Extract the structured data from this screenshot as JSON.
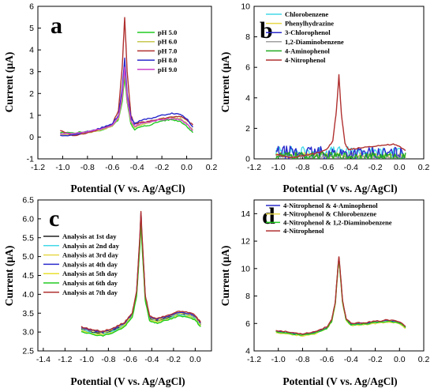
{
  "chart_data": [
    {
      "panel": "a",
      "type": "line",
      "xlabel": "Potential (V vs. Ag/AgCl)",
      "ylabel": "Current (μA)",
      "xlim": [
        -1.2,
        0.2
      ],
      "ylim": [
        -1,
        6
      ],
      "xticks": [
        "-1.2",
        "-1.0",
        "-0.8",
        "-0.6",
        "-0.4",
        "-0.2",
        "0.0",
        "0.2"
      ],
      "yticks": [
        "-1",
        "0",
        "1",
        "2",
        "3",
        "4",
        "5",
        "6"
      ],
      "legend_position": "top-right",
      "series": [
        {
          "name": "pH 5.0",
          "color": "#22cc22",
          "x": [
            -1.02,
            -0.9,
            -0.8,
            -0.7,
            -0.6,
            -0.55,
            -0.52,
            -0.5,
            -0.48,
            -0.45,
            -0.42,
            -0.38,
            -0.3,
            -0.2,
            -0.12,
            -0.05,
            0.0,
            0.05
          ],
          "y": [
            0.2,
            0.2,
            0.25,
            0.3,
            0.5,
            0.8,
            1.6,
            2.8,
            1.6,
            0.6,
            0.35,
            0.45,
            0.55,
            0.75,
            0.8,
            0.72,
            0.5,
            0.2
          ]
        },
        {
          "name": "pH 6.0",
          "color": "#c8c850",
          "x": [
            -1.02,
            -0.9,
            -0.8,
            -0.7,
            -0.6,
            -0.55,
            -0.52,
            -0.5,
            -0.48,
            -0.45,
            -0.42,
            -0.38,
            -0.3,
            -0.2,
            -0.12,
            -0.05,
            0.0,
            0.05
          ],
          "y": [
            0.1,
            0.1,
            0.2,
            0.3,
            0.5,
            0.85,
            1.8,
            3.1,
            1.7,
            0.7,
            0.45,
            0.55,
            0.65,
            0.85,
            0.9,
            0.85,
            0.65,
            0.35
          ]
        },
        {
          "name": "pH 7.0",
          "color": "#b03030",
          "x": [
            -1.02,
            -0.9,
            -0.8,
            -0.7,
            -0.6,
            -0.55,
            -0.52,
            -0.5,
            -0.48,
            -0.45,
            -0.42,
            -0.38,
            -0.3,
            -0.2,
            -0.12,
            -0.05,
            0.0,
            0.05
          ],
          "y": [
            0.3,
            0.05,
            0.2,
            0.35,
            0.6,
            1.2,
            3.2,
            5.5,
            3.0,
            1.0,
            0.6,
            0.65,
            0.75,
            0.85,
            0.9,
            0.95,
            0.8,
            0.55
          ]
        },
        {
          "name": "pH 8.0",
          "color": "#2a2acc",
          "x": [
            -1.02,
            -0.9,
            -0.8,
            -0.7,
            -0.6,
            -0.55,
            -0.52,
            -0.5,
            -0.48,
            -0.45,
            -0.42,
            -0.38,
            -0.3,
            -0.2,
            -0.12,
            -0.05,
            0.0,
            0.05
          ],
          "y": [
            0.05,
            0.1,
            0.25,
            0.4,
            0.6,
            1.0,
            2.2,
            3.6,
            2.0,
            0.9,
            0.6,
            0.75,
            0.85,
            1.0,
            1.1,
            1.05,
            0.85,
            0.45
          ]
        },
        {
          "name": "pH 9.0",
          "color": "#cc44cc",
          "x": [
            -1.02,
            -0.9,
            -0.8,
            -0.7,
            -0.6,
            -0.55,
            -0.52,
            -0.5,
            -0.48,
            -0.45,
            -0.42,
            -0.38,
            -0.3,
            -0.2,
            -0.12,
            -0.05,
            0.0,
            0.05
          ],
          "y": [
            0.15,
            0.15,
            0.25,
            0.35,
            0.55,
            0.9,
            1.9,
            3.2,
            1.8,
            0.75,
            0.5,
            0.6,
            0.7,
            0.8,
            0.85,
            0.8,
            0.6,
            0.3
          ]
        }
      ]
    },
    {
      "panel": "b",
      "type": "line",
      "xlabel": "Potential (V vs. Ag/AgCl)",
      "ylabel": "Current (μA)",
      "xlim": [
        -1.2,
        0.2
      ],
      "ylim": [
        0,
        10
      ],
      "xticks": [
        "-1.2",
        "-1.0",
        "-0.8",
        "-0.6",
        "-0.4",
        "-0.2",
        "0.0",
        "0.2"
      ],
      "yticks": [
        "0",
        "2",
        "4",
        "6",
        "8",
        "10"
      ],
      "legend_position": "top-right",
      "series": [
        {
          "name": "Chlorobenzene",
          "color": "#44d8e8",
          "noise": 0.35,
          "x": [
            -1.02,
            0.05
          ],
          "y": [
            0.5,
            0.4
          ]
        },
        {
          "name": "Phenylhydrazine",
          "color": "#e8d84a",
          "noise": 0.15,
          "x": [
            -1.02,
            0.05
          ],
          "y": [
            0.3,
            0.2
          ]
        },
        {
          "name": "3-Chlorophenol",
          "color": "#2a2acc",
          "noise": 0.45,
          "x": [
            -1.02,
            0.05
          ],
          "y": [
            0.4,
            0.3
          ]
        },
        {
          "name": "1,2-Diaminobenzene",
          "color": "#a0a0a0",
          "noise": 0.1,
          "x": [
            -1.02,
            0.05
          ],
          "y": [
            0.15,
            0.1
          ]
        },
        {
          "name": "4-Aminophenol",
          "color": "#22aa22",
          "noise": 0.25,
          "x": [
            -1.02,
            0.05
          ],
          "y": [
            0.2,
            0.15
          ]
        },
        {
          "name": "4-Nitrophenol",
          "color": "#b03030",
          "noise": 0.0,
          "x": [
            -1.02,
            -0.9,
            -0.8,
            -0.7,
            -0.6,
            -0.55,
            -0.52,
            -0.5,
            -0.48,
            -0.45,
            -0.42,
            -0.38,
            -0.3,
            -0.2,
            -0.12,
            -0.05,
            0.0,
            0.05
          ],
          "y": [
            0.3,
            0.05,
            0.2,
            0.35,
            0.6,
            1.2,
            3.2,
            5.5,
            3.0,
            1.0,
            0.6,
            0.65,
            0.75,
            0.85,
            0.9,
            0.95,
            0.8,
            0.55
          ]
        }
      ]
    },
    {
      "panel": "c",
      "type": "line",
      "xlabel": "Potential (V vs. Ag/AgCl)",
      "ylabel": "Current (μA)",
      "xlim": [
        -1.45,
        0.15
      ],
      "ylim": [
        2.5,
        6.5
      ],
      "xticks": [
        "-1.4",
        "-1.2",
        "-1.0",
        "-0.8",
        "-0.6",
        "-0.4",
        "-0.2",
        "0.0"
      ],
      "yticks": [
        "2.5",
        "3.0",
        "3.5",
        "4.0",
        "4.5",
        "5.0",
        "5.5",
        "6.0",
        "6.5"
      ],
      "legend_position": "left",
      "series": [
        {
          "name": "Analysis at 1st day",
          "color": "#202020",
          "x": [
            -1.05,
            -0.95,
            -0.85,
            -0.75,
            -0.65,
            -0.58,
            -0.54,
            -0.51,
            -0.5,
            -0.49,
            -0.46,
            -0.42,
            -0.35,
            -0.25,
            -0.15,
            -0.05,
            0.0,
            0.05
          ],
          "y": [
            3.08,
            3.0,
            2.96,
            3.05,
            3.2,
            3.45,
            4.0,
            5.4,
            6.05,
            5.4,
            3.9,
            3.35,
            3.3,
            3.38,
            3.48,
            3.45,
            3.38,
            3.2
          ]
        },
        {
          "name": "Analysis at 2nd day",
          "color": "#44d8e8",
          "x": [
            -1.05,
            -0.95,
            -0.85,
            -0.75,
            -0.65,
            -0.58,
            -0.54,
            -0.51,
            -0.5,
            -0.49,
            -0.46,
            -0.42,
            -0.35,
            -0.25,
            -0.15,
            -0.05,
            0.0,
            0.05
          ],
          "y": [
            3.06,
            2.98,
            2.94,
            3.03,
            3.18,
            3.43,
            3.98,
            5.35,
            6.0,
            5.35,
            3.88,
            3.33,
            3.28,
            3.36,
            3.46,
            3.43,
            3.36,
            3.18
          ]
        },
        {
          "name": "Analysis at 3rd day",
          "color": "#e8d84a",
          "x": [
            -1.05,
            -0.95,
            -0.85,
            -0.75,
            -0.65,
            -0.58,
            -0.54,
            -0.51,
            -0.5,
            -0.49,
            -0.46,
            -0.42,
            -0.35,
            -0.25,
            -0.15,
            -0.05,
            0.0,
            0.05
          ],
          "y": [
            3.1,
            3.02,
            2.98,
            3.07,
            3.22,
            3.47,
            4.02,
            5.42,
            6.08,
            5.42,
            3.92,
            3.37,
            3.32,
            3.4,
            3.5,
            3.47,
            3.4,
            3.22
          ]
        },
        {
          "name": "Analysis at 4th day",
          "color": "#2a2acc",
          "x": [
            -1.05,
            -0.95,
            -0.85,
            -0.75,
            -0.65,
            -0.58,
            -0.54,
            -0.51,
            -0.5,
            -0.49,
            -0.46,
            -0.42,
            -0.35,
            -0.25,
            -0.15,
            -0.05,
            0.0,
            0.05
          ],
          "y": [
            3.12,
            3.04,
            3.0,
            3.09,
            3.24,
            3.49,
            4.05,
            5.5,
            6.15,
            5.5,
            3.95,
            3.4,
            3.34,
            3.42,
            3.52,
            3.49,
            3.42,
            3.24
          ]
        },
        {
          "name": "Analysis at 5th day",
          "color": "#e8e030",
          "x": [
            -1.05,
            -0.95,
            -0.85,
            -0.75,
            -0.65,
            -0.58,
            -0.54,
            -0.51,
            -0.5,
            -0.49,
            -0.46,
            -0.42,
            -0.35,
            -0.25,
            -0.15,
            -0.05,
            0.0,
            0.05
          ],
          "y": [
            3.04,
            2.96,
            2.92,
            3.01,
            3.16,
            3.41,
            3.96,
            5.32,
            5.98,
            5.32,
            3.86,
            3.31,
            3.26,
            3.34,
            3.44,
            3.41,
            3.34,
            3.16
          ]
        },
        {
          "name": "Analysis at 6th day",
          "color": "#22cc22",
          "x": [
            -1.05,
            -0.95,
            -0.85,
            -0.75,
            -0.65,
            -0.58,
            -0.54,
            -0.51,
            -0.5,
            -0.49,
            -0.46,
            -0.42,
            -0.35,
            -0.25,
            -0.15,
            -0.05,
            0.0,
            0.05
          ],
          "y": [
            3.02,
            2.94,
            2.9,
            2.99,
            3.14,
            3.39,
            3.94,
            5.3,
            5.95,
            5.3,
            3.84,
            3.29,
            3.24,
            3.32,
            3.42,
            3.39,
            3.32,
            3.14
          ]
        },
        {
          "name": "Analysis at 7th day",
          "color": "#b03030",
          "x": [
            -1.05,
            -0.95,
            -0.85,
            -0.75,
            -0.65,
            -0.58,
            -0.54,
            -0.51,
            -0.5,
            -0.49,
            -0.46,
            -0.42,
            -0.35,
            -0.25,
            -0.15,
            -0.05,
            0.0,
            0.05
          ],
          "y": [
            3.14,
            3.06,
            3.02,
            3.11,
            3.26,
            3.51,
            4.07,
            5.55,
            6.2,
            5.55,
            3.97,
            3.42,
            3.36,
            3.44,
            3.55,
            3.52,
            3.44,
            3.26
          ]
        }
      ]
    },
    {
      "panel": "d",
      "type": "line",
      "xlabel": "Potential (V vs. Ag/AgCl)",
      "ylabel": "Current (μA)",
      "xlim": [
        -1.2,
        0.2
      ],
      "ylim": [
        4,
        15
      ],
      "xticks": [
        "-1.2",
        "-1.0",
        "-0.8",
        "-0.6",
        "-0.4",
        "-0.2",
        "0.0",
        "0.2"
      ],
      "yticks": [
        "4",
        "6",
        "8",
        "10",
        "12",
        "14"
      ],
      "legend_position": "top-right",
      "series": [
        {
          "name": "4-Nitrophenol & 4-Aminophenol",
          "color": "#2a2acc",
          "x": [
            -1.02,
            -0.9,
            -0.8,
            -0.7,
            -0.6,
            -0.56,
            -0.53,
            -0.51,
            -0.5,
            -0.49,
            -0.47,
            -0.44,
            -0.4,
            -0.3,
            -0.2,
            -0.1,
            0.0,
            0.05
          ],
          "y": [
            5.45,
            5.3,
            5.2,
            5.35,
            5.7,
            6.2,
            7.5,
            9.8,
            10.8,
            9.8,
            7.6,
            6.3,
            5.95,
            6.0,
            6.1,
            6.2,
            6.1,
            5.75
          ]
        },
        {
          "name": "4-Nitrophenol & Chlorobenzene",
          "color": "#e8d84a",
          "x": [
            -1.02,
            -0.9,
            -0.8,
            -0.7,
            -0.6,
            -0.56,
            -0.53,
            -0.51,
            -0.5,
            -0.49,
            -0.47,
            -0.44,
            -0.4,
            -0.3,
            -0.2,
            -0.1,
            0.0,
            0.05
          ],
          "y": [
            5.35,
            5.2,
            5.1,
            5.25,
            5.6,
            6.1,
            7.4,
            9.7,
            10.7,
            9.7,
            7.5,
            6.2,
            5.85,
            5.9,
            6.0,
            6.1,
            6.0,
            5.65
          ]
        },
        {
          "name": "4-Nitrophenol & 1,2-Diaminobenzene",
          "color": "#22cc22",
          "x": [
            -1.02,
            -0.9,
            -0.8,
            -0.7,
            -0.6,
            -0.56,
            -0.53,
            -0.51,
            -0.5,
            -0.49,
            -0.47,
            -0.44,
            -0.4,
            -0.3,
            -0.2,
            -0.1,
            0.0,
            0.05
          ],
          "y": [
            5.4,
            5.25,
            5.15,
            5.3,
            5.65,
            6.15,
            7.45,
            9.75,
            10.75,
            9.75,
            7.55,
            6.25,
            5.9,
            5.95,
            6.05,
            6.15,
            6.05,
            5.7
          ]
        },
        {
          "name": "4-Nitrophenol",
          "color": "#b03030",
          "x": [
            -1.02,
            -0.9,
            -0.8,
            -0.7,
            -0.6,
            -0.56,
            -0.53,
            -0.51,
            -0.5,
            -0.49,
            -0.47,
            -0.44,
            -0.4,
            -0.3,
            -0.2,
            -0.1,
            0.0,
            0.05
          ],
          "y": [
            5.5,
            5.35,
            5.25,
            5.4,
            5.75,
            6.25,
            7.55,
            9.9,
            10.9,
            9.9,
            7.65,
            6.35,
            6.0,
            6.05,
            6.15,
            6.25,
            6.15,
            5.8
          ]
        }
      ]
    }
  ]
}
